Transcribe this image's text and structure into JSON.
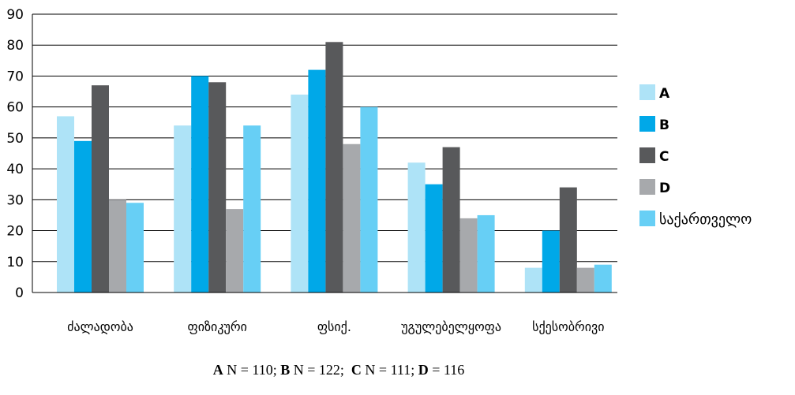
{
  "chart_data": {
    "type": "bar",
    "categories": [
      "ძალადობა",
      "ფიზიკური",
      "ფსიქ.",
      "უგულებელყოფა",
      "სქესობრივი"
    ],
    "series": [
      {
        "name": "A",
        "color": "#aee3f7",
        "values": [
          57,
          54,
          64,
          42,
          8
        ]
      },
      {
        "name": "B",
        "color": "#00a8e8",
        "values": [
          49,
          70,
          72,
          35,
          20
        ]
      },
      {
        "name": "C",
        "color": "#58595b",
        "values": [
          67,
          68,
          81,
          47,
          34
        ]
      },
      {
        "name": "D",
        "color": "#a7a9ac",
        "values": [
          30,
          27,
          48,
          24,
          8
        ]
      },
      {
        "name": "საქართველო",
        "color": "#67cff5",
        "values": [
          29,
          54,
          60,
          25,
          9
        ]
      }
    ],
    "ylim": [
      0,
      90
    ],
    "yticks": [
      0,
      10,
      20,
      30,
      40,
      50,
      60,
      70,
      80,
      90
    ],
    "grid": true,
    "legend_position": "right",
    "title": "",
    "xlabel": "",
    "ylabel": ""
  },
  "footnote": {
    "parts": [
      {
        "label": "A",
        "text": " N = 110; "
      },
      {
        "label": "B",
        "text": " N = 122;  "
      },
      {
        "label": "C",
        "text": " N = 111; "
      },
      {
        "label": "D",
        "text": " = 116"
      }
    ]
  }
}
